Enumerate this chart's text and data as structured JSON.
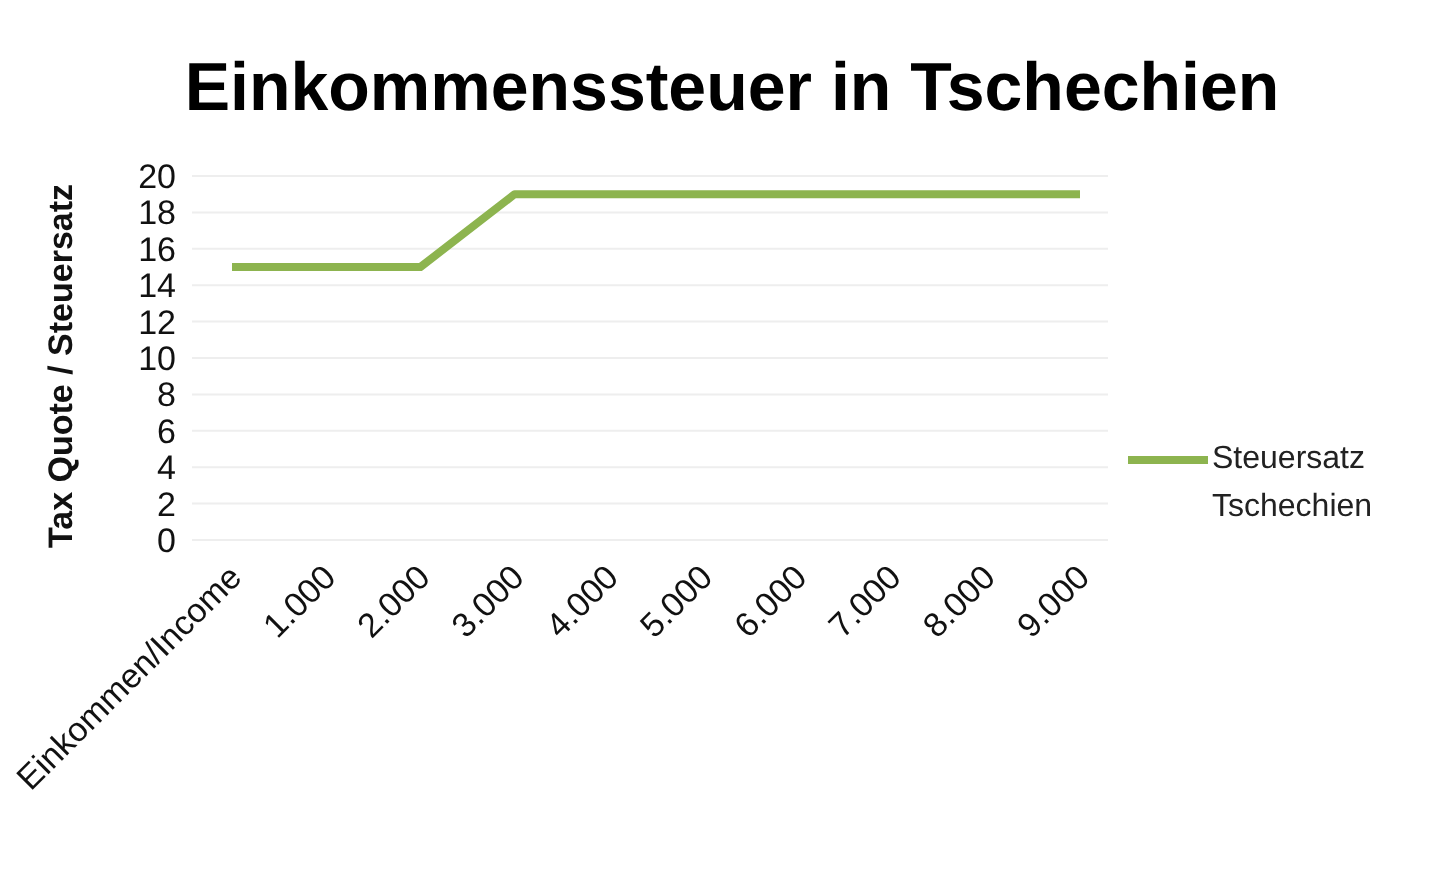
{
  "chart_data": {
    "type": "line",
    "title": "Einkommenssteuer in Tschechien",
    "ylabel": "Tax Quote  / Steuersatz",
    "categories": [
      "Einkommen/Income",
      "1.000",
      "2.000",
      "3.000",
      "4.000",
      "5.000",
      "6.000",
      "7.000",
      "8.000",
      "9.000"
    ],
    "series": [
      {
        "name": "Steuersatz Tschechien",
        "color": "#8db44f",
        "values": [
          15,
          15,
          15,
          19,
          19,
          19,
          19,
          19,
          19,
          19
        ]
      }
    ],
    "ylim": [
      0,
      20
    ],
    "yticks": [
      0,
      2,
      4,
      6,
      8,
      10,
      12,
      14,
      16,
      18,
      20
    ],
    "grid": "y",
    "legend": "right",
    "marker": "none",
    "line_style": "solid"
  }
}
